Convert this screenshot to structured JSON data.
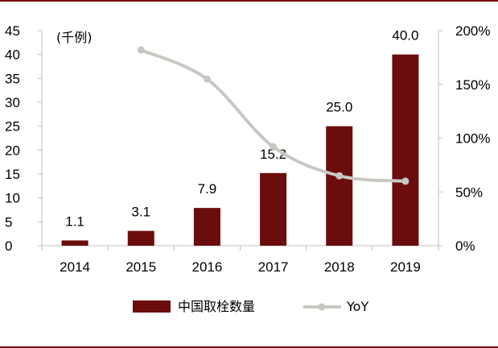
{
  "chart_data": {
    "type": "bar",
    "categories": [
      "2014",
      "2015",
      "2016",
      "2017",
      "2018",
      "2019"
    ],
    "series": [
      {
        "name": "中国取栓数量",
        "type": "bar",
        "axis": "left",
        "values": [
          1.1,
          3.1,
          7.9,
          15.2,
          25.0,
          40.0
        ],
        "labels": [
          "1.1",
          "3.1",
          "7.9",
          "15.2",
          "25.0",
          "40.0"
        ]
      },
      {
        "name": "YoY",
        "type": "line",
        "axis": "right",
        "values": [
          null,
          182,
          155,
          92,
          65,
          60
        ]
      }
    ],
    "unit_label": "(千例)",
    "ylim_left": [
      0,
      45
    ],
    "yticks_left": [
      "0",
      "5",
      "10",
      "15",
      "20",
      "25",
      "30",
      "35",
      "40",
      "45"
    ],
    "ylim_right": [
      0,
      200
    ],
    "yticks_right": [
      "0%",
      "50%",
      "100%",
      "150%",
      "200%"
    ],
    "colors": {
      "bar": "#6b0d0d",
      "line": "#c8c8c3",
      "frame": "#7a0c0c"
    },
    "legend_position": "bottom-center"
  }
}
